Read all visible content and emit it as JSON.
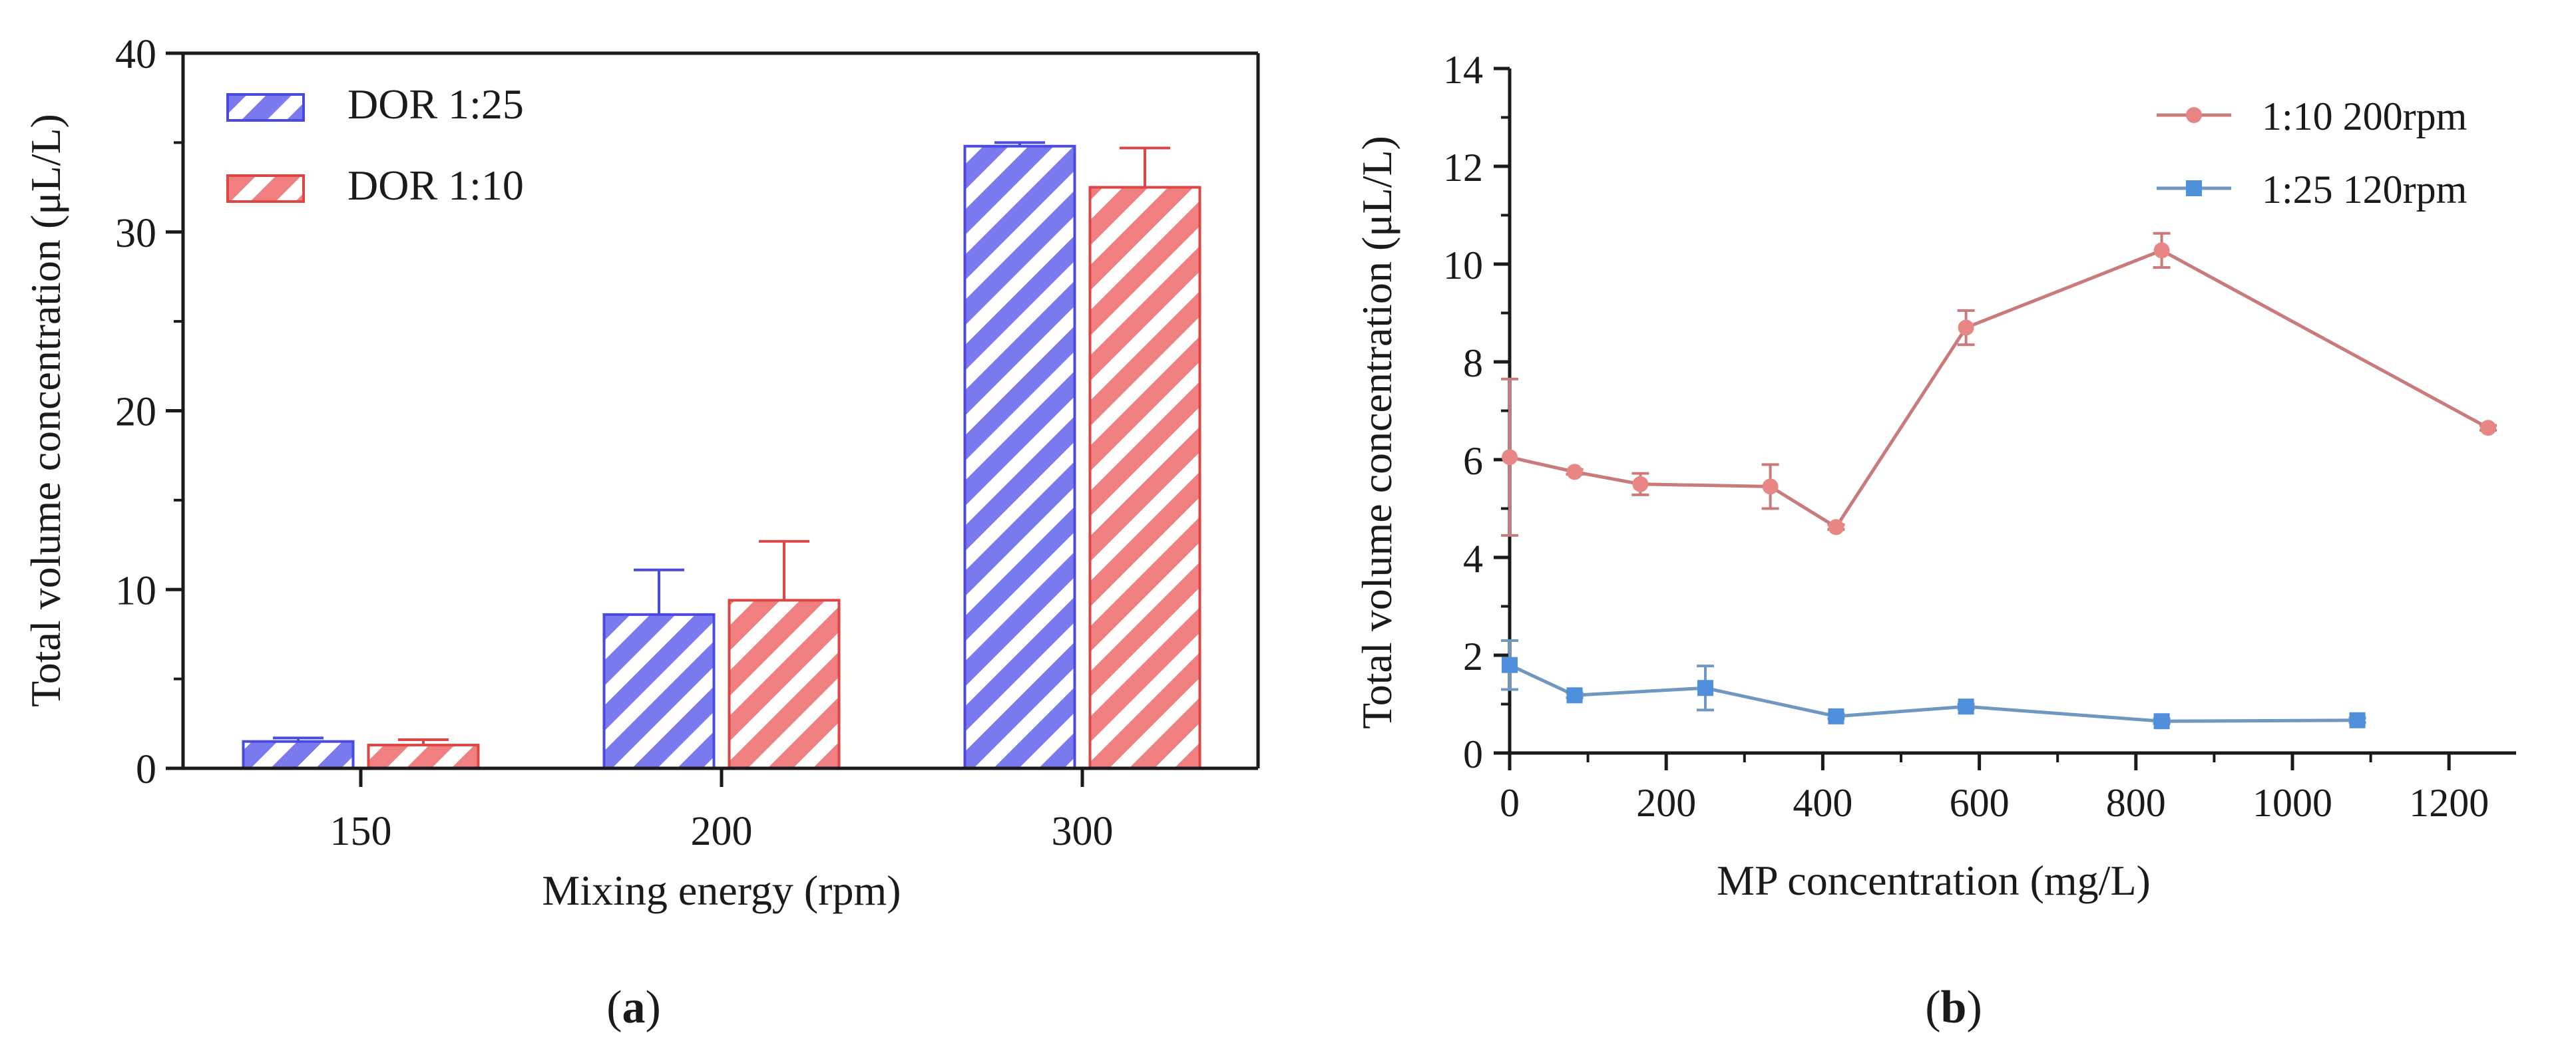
{
  "panels": {
    "a": {
      "label": "a"
    },
    "b": {
      "label": "b"
    }
  },
  "chart_data": [
    {
      "type": "bar",
      "panel": "a",
      "categories": [
        "150",
        "200",
        "300"
      ],
      "series": [
        {
          "name": "DOR 1:25",
          "values": [
            1.5,
            8.6,
            34.8
          ],
          "errors": [
            0.2,
            2.5,
            0.2
          ],
          "color": "#6666ee"
        },
        {
          "name": "DOR 1:10",
          "values": [
            1.3,
            9.4,
            32.5
          ],
          "errors": [
            0.3,
            3.3,
            2.2
          ],
          "color": "#ee6666"
        }
      ],
      "title": "",
      "xlabel": "Mixing energy (rpm)",
      "ylabel": "Total volume concentration (μL/L)",
      "ylim": [
        0,
        40
      ],
      "yticks": [
        "0",
        "10",
        "20",
        "30",
        "40"
      ],
      "legend": "top-left",
      "pattern": "diagonal-hatch",
      "grid": false
    },
    {
      "type": "line",
      "panel": "b",
      "series": [
        {
          "name": "1:10 200rpm",
          "marker": "circle",
          "color": "#c97a7a",
          "marker_color": "#e88585",
          "x": [
            0,
            83,
            167,
            333,
            417,
            583,
            833,
            1250
          ],
          "y": [
            6.05,
            5.75,
            5.5,
            5.45,
            4.62,
            8.7,
            10.28,
            6.65
          ],
          "errors": [
            1.6,
            0.05,
            0.22,
            0.45,
            0.05,
            0.35,
            0.35,
            0.05
          ]
        },
        {
          "name": "1:25 120rpm",
          "marker": "square",
          "color": "#6f98c0",
          "marker_color": "#4f8fdc",
          "x": [
            0,
            83,
            250,
            417,
            583,
            833,
            1083
          ],
          "y": [
            1.8,
            1.18,
            1.33,
            0.75,
            0.95,
            0.65,
            0.67
          ],
          "errors": [
            0.5,
            0.05,
            0.45,
            0.05,
            0.05,
            0.05,
            0.05
          ]
        }
      ],
      "title": "",
      "xlabel": "MP concentration (mg/L)",
      "ylabel": "Total volume concentration (μL/L)",
      "xlim": [
        0,
        1250
      ],
      "ylim": [
        0,
        14
      ],
      "xticks": [
        "0",
        "200",
        "400",
        "600",
        "800",
        "1000",
        "1200"
      ],
      "yticks": [
        "0",
        "2",
        "4",
        "6",
        "8",
        "10",
        "12",
        "14"
      ],
      "legend": "top-right",
      "grid": false
    }
  ]
}
